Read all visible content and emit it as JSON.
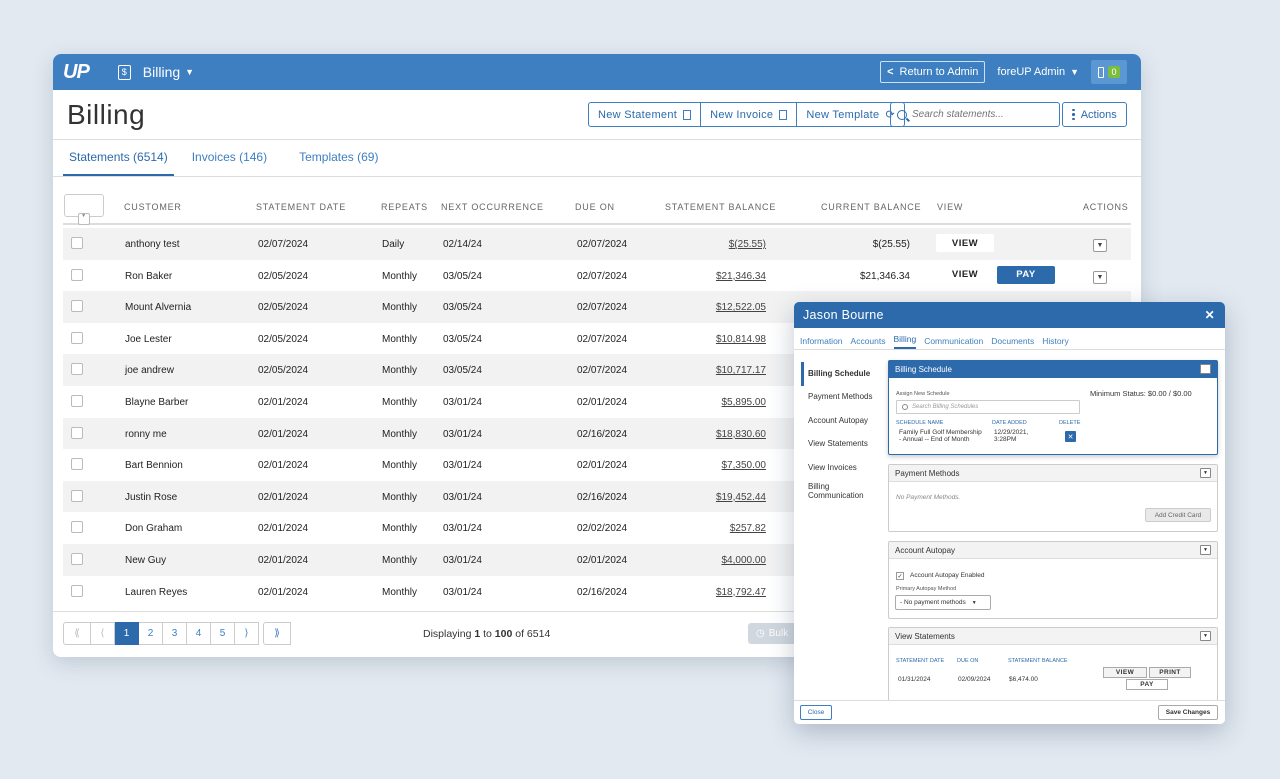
{
  "topbar": {
    "logo": "UP",
    "module_label": "Billing",
    "return_label": "Return to Admin",
    "admin_label": "foreUP Admin",
    "notification_count": "0"
  },
  "header": {
    "title": "Billing",
    "buttons": [
      "New Statement",
      "New Invoice",
      "New Template"
    ],
    "search_placeholder": "Search statements...",
    "actions_label": "Actions"
  },
  "tabs": [
    "Statements (6514)",
    "Invoices (146)",
    "Templates (69)"
  ],
  "table": {
    "columns": [
      "CUSTOMER",
      "STATEMENT DATE",
      "REPEATS",
      "NEXT OCCURRENCE",
      "DUE ON",
      "STATEMENT BALANCE",
      "CURRENT BALANCE",
      "VIEW",
      "ACTIONS"
    ],
    "view_label": "VIEW",
    "pay_label": "PAY",
    "rows": [
      {
        "customer": "anthony test",
        "date": "02/07/2024",
        "repeats": "Daily",
        "next": "02/14/24",
        "due": "02/07/2024",
        "balance": "$(25.55)",
        "current": "$(25.55)"
      },
      {
        "customer": "Ron Baker",
        "date": "02/05/2024",
        "repeats": "Monthly",
        "next": "03/05/24",
        "due": "02/07/2024",
        "balance": "$21,346.34",
        "current": "$21,346.34"
      },
      {
        "customer": "Mount Alvernia",
        "date": "02/05/2024",
        "repeats": "Monthly",
        "next": "03/05/24",
        "due": "02/07/2024",
        "balance": "$12,522.05",
        "current": ""
      },
      {
        "customer": "Joe Lester",
        "date": "02/05/2024",
        "repeats": "Monthly",
        "next": "03/05/24",
        "due": "02/07/2024",
        "balance": "$10,814.98",
        "current": ""
      },
      {
        "customer": "joe andrew",
        "date": "02/05/2024",
        "repeats": "Monthly",
        "next": "03/05/24",
        "due": "02/07/2024",
        "balance": "$10,717.17",
        "current": ""
      },
      {
        "customer": "Blayne Barber",
        "date": "02/01/2024",
        "repeats": "Monthly",
        "next": "03/01/24",
        "due": "02/01/2024",
        "balance": "$5,895.00",
        "current": ""
      },
      {
        "customer": "ronny me",
        "date": "02/01/2024",
        "repeats": "Monthly",
        "next": "03/01/24",
        "due": "02/16/2024",
        "balance": "$18,830.60",
        "current": ""
      },
      {
        "customer": "Bart Bennion",
        "date": "02/01/2024",
        "repeats": "Monthly",
        "next": "03/01/24",
        "due": "02/01/2024",
        "balance": "$7,350.00",
        "current": ""
      },
      {
        "customer": "Justin Rose",
        "date": "02/01/2024",
        "repeats": "Monthly",
        "next": "03/01/24",
        "due": "02/16/2024",
        "balance": "$19,452.44",
        "current": ""
      },
      {
        "customer": "Don Graham",
        "date": "02/01/2024",
        "repeats": "Monthly",
        "next": "03/01/24",
        "due": "02/02/2024",
        "balance": "$257.82",
        "current": ""
      },
      {
        "customer": "New Guy",
        "date": "02/01/2024",
        "repeats": "Monthly",
        "next": "03/01/24",
        "due": "02/01/2024",
        "balance": "$4,000.00",
        "current": ""
      },
      {
        "customer": "Lauren Reyes",
        "date": "02/01/2024",
        "repeats": "Monthly",
        "next": "03/01/24",
        "due": "02/16/2024",
        "balance": "$18,792.47",
        "current": ""
      }
    ]
  },
  "pager": {
    "pages": [
      "1",
      "2",
      "3",
      "4",
      "5"
    ],
    "current": "1",
    "first": "⟪",
    "prev": "⟨",
    "next": "⟩",
    "last": "⟫",
    "display_prefix": "Displaying ",
    "display_from": "1",
    "display_mid": " to ",
    "display_to": "100",
    "display_of": " of 6514",
    "bulk_label": "Bulk"
  },
  "modal": {
    "title": "Jason Bourne",
    "tabs": [
      "Information",
      "Accounts",
      "Billing",
      "Communication",
      "Documents",
      "History"
    ],
    "side": [
      "Billing Schedule",
      "Payment Methods",
      "Account Autopay",
      "View Statements",
      "View Invoices",
      "Billing Communication"
    ],
    "schedule": {
      "title": "Billing Schedule",
      "assign_label": "Assign New Schedule",
      "search_placeholder": "Search Billing Schedules",
      "min_status": "Minimum Status: $0.00 / $0.00",
      "col_name": "SCHEDULE NAME",
      "col_date": "DATE ADDED",
      "col_delete": "DELETE",
      "name_line1": "Family Full Golf Membership",
      "name_line2": "- Annual -- End of Month",
      "date_line1": "12/29/2021,",
      "date_line2": "3:28PM"
    },
    "payment": {
      "title": "Payment Methods",
      "empty": "No Payment Methods.",
      "add_label": "Add Credit Card"
    },
    "autopay": {
      "title": "Account Autopay",
      "enabled_label": "Account Autopay Enabled",
      "method_label": "Primary Autopay Method",
      "method_value": "- No payment methods"
    },
    "statements": {
      "title": "View Statements",
      "col_date": "STATEMENT DATE",
      "col_due": "DUE ON",
      "col_balance": "STATEMENT BALANCE",
      "date": "01/31/2024",
      "due": "02/09/2024",
      "balance": "$6,474.00",
      "view": "VIEW",
      "print": "PRINT",
      "pay": "PAY"
    },
    "close_label": "Close",
    "save_label": "Save Changes"
  }
}
